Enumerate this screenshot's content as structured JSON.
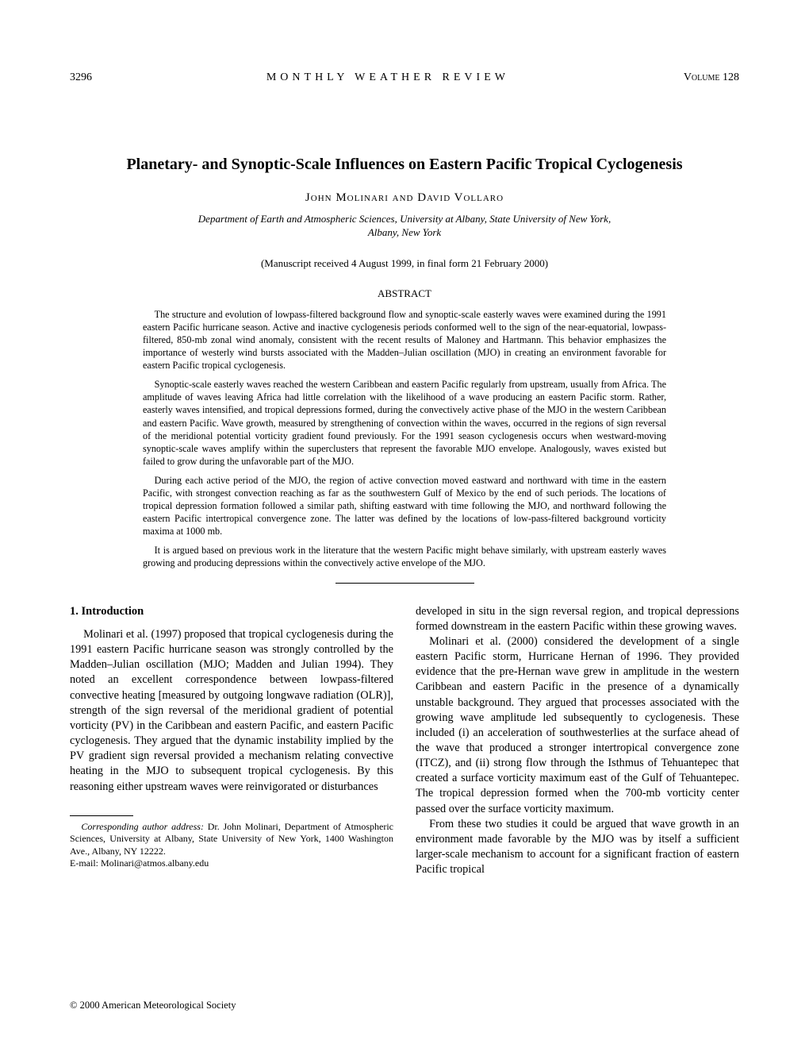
{
  "header": {
    "page_number": "3296",
    "journal": "MONTHLY WEATHER REVIEW",
    "volume_label": "Volume",
    "volume_number": "128"
  },
  "paper": {
    "title": "Planetary- and Synoptic-Scale Influences on Eastern Pacific Tropical Cyclogenesis",
    "authors": "John Molinari and David Vollaro",
    "affiliation_line1": "Department of Earth and Atmospheric Sciences, University at Albany, State University of New York,",
    "affiliation_line2": "Albany, New York",
    "manuscript_info": "(Manuscript received 4 August 1999, in final form 21 February 2000)",
    "abstract_heading": "ABSTRACT",
    "abstract_paragraphs": [
      "The structure and evolution of lowpass-filtered background flow and synoptic-scale easterly waves were examined during the 1991 eastern Pacific hurricane season. Active and inactive cyclogenesis periods conformed well to the sign of the near-equatorial, lowpass-filtered, 850-mb zonal wind anomaly, consistent with the recent results of Maloney and Hartmann. This behavior emphasizes the importance of westerly wind bursts associated with the Madden–Julian oscillation (MJO) in creating an environment favorable for eastern Pacific tropical cyclogenesis.",
      "Synoptic-scale easterly waves reached the western Caribbean and eastern Pacific regularly from upstream, usually from Africa. The amplitude of waves leaving Africa had little correlation with the likelihood of a wave producing an eastern Pacific storm. Rather, easterly waves intensified, and tropical depressions formed, during the convectively active phase of the MJO in the western Caribbean and eastern Pacific. Wave growth, measured by strengthening of convection within the waves, occurred in the regions of sign reversal of the meridional potential vorticity gradient found previously. For the 1991 season cyclogenesis occurs when westward-moving synoptic-scale waves amplify within the superclusters that represent the favorable MJO envelope. Analogously, waves existed but failed to grow during the unfavorable part of the MJO.",
      "During each active period of the MJO, the region of active convection moved eastward and northward with time in the eastern Pacific, with strongest convection reaching as far as the southwestern Gulf of Mexico by the end of such periods. The locations of tropical depression formation followed a similar path, shifting eastward with time following the MJO, and northward following the eastern Pacific intertropical convergence zone. The latter was defined by the locations of low-pass-filtered background vorticity maxima at 1000 mb.",
      "It is argued based on previous work in the literature that the western Pacific might behave similarly, with upstream easterly waves growing and producing depressions within the convectively active envelope of the MJO."
    ]
  },
  "body": {
    "section_heading": "1. Introduction",
    "left_paragraphs": [
      "Molinari et al. (1997) proposed that tropical cyclogenesis during the 1991 eastern Pacific hurricane season was strongly controlled by the Madden–Julian oscillation (MJO; Madden and Julian 1994). They noted an excellent correspondence between lowpass-filtered convective heating [measured by outgoing longwave radiation (OLR)], strength of the sign reversal of the meridional gradient of potential vorticity (PV) in the Caribbean and eastern Pacific, and eastern Pacific cyclogenesis. They argued that the dynamic instability implied by the PV gradient sign reversal provided a mechanism relating convective heating in the MJO to subsequent tropical cyclogenesis. By this reasoning either upstream waves were reinvigorated or disturbances"
    ],
    "right_paragraphs": [
      "developed in situ in the sign reversal region, and tropical depressions formed downstream in the eastern Pacific within these growing waves.",
      "Molinari et al. (2000) considered the development of a single eastern Pacific storm, Hurricane Hernan of 1996. They provided evidence that the pre-Hernan wave grew in amplitude in the western Caribbean and eastern Pacific in the presence of a dynamically unstable background. They argued that processes associated with the growing wave amplitude led subsequently to cyclogenesis. These included (i) an acceleration of southwesterlies at the surface ahead of the wave that produced a stronger intertropical convergence zone (ITCZ), and (ii) strong flow through the Isthmus of Tehuantepec that created a surface vorticity maximum east of the Gulf of Tehuantepec. The tropical depression formed when the 700-mb vorticity center passed over the surface vorticity maximum.",
      "From these two studies it could be argued that wave growth in an environment made favorable by the MJO was by itself a sufficient larger-scale mechanism to account for a significant fraction of eastern Pacific tropical"
    ]
  },
  "footnote": {
    "label": "Corresponding author address:",
    "text": " Dr. John Molinari, Department of Atmospheric Sciences, University at Albany, State University of New York, 1400 Washington Ave., Albany, NY 12222.",
    "email": "E-mail: Molinari@atmos.albany.edu"
  },
  "copyright": "© 2000 American Meteorological Society"
}
